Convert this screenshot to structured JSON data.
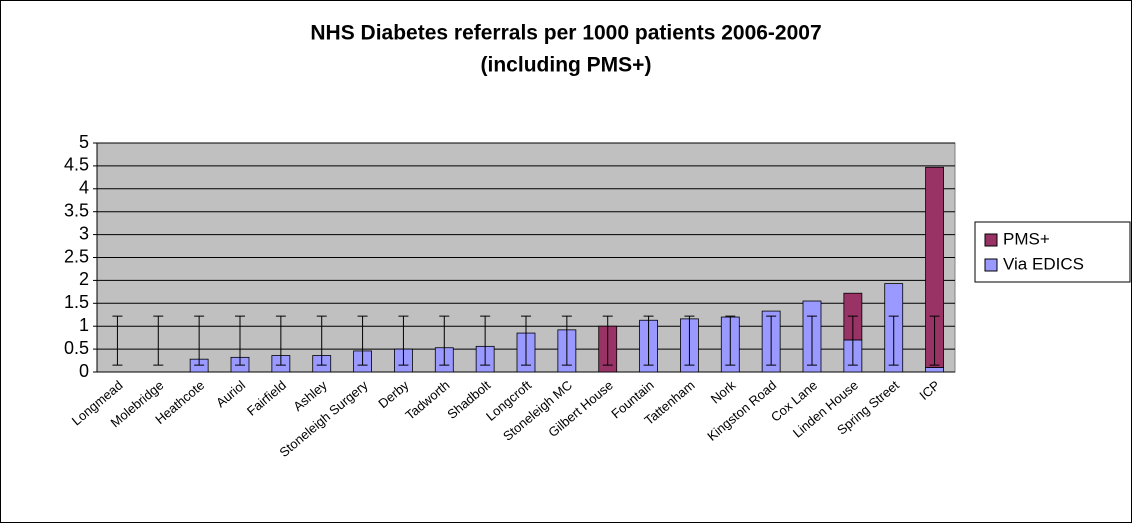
{
  "chart_data": {
    "type": "stacked_bar",
    "title": [
      "NHS Diabetes referrals per 1000 patients 2006-2007",
      "(including PMS+)"
    ],
    "categories": [
      "Longmead",
      "Molebridge",
      "Heathcote",
      "Auriol",
      "Fairfield",
      "Ashley",
      "Stoneleigh Surgery",
      "Derby",
      "Tadworth",
      "Shadbolt",
      "Longcroft",
      "Stoneleigh MC",
      "Gilbert House",
      "Fountain",
      "Tattenham",
      "Nork",
      "Kingston Road",
      "Cox Lane",
      "Linden House",
      "Spring Street",
      "ICP"
    ],
    "series": [
      {
        "name": "Via EDICS",
        "color": "#9999ff",
        "values": [
          0,
          0,
          0.28,
          0.32,
          0.36,
          0.36,
          0.46,
          0.5,
          0.53,
          0.56,
          0.85,
          0.92,
          0,
          1.13,
          1.16,
          1.2,
          1.33,
          1.55,
          0.7,
          1.93,
          0.1
        ]
      },
      {
        "name": "PMS+",
        "color": "#993366",
        "values": [
          0,
          0,
          0,
          0,
          0,
          0,
          0,
          0,
          0,
          0,
          0,
          0,
          1.0,
          0,
          0,
          0,
          0,
          0,
          1.02,
          0,
          4.37
        ]
      }
    ],
    "range_low": 0.15,
    "range_high": 1.22,
    "ylim": [
      0,
      5
    ],
    "yticks": [
      0,
      0.5,
      1,
      1.5,
      2,
      2.5,
      3,
      3.5,
      4,
      4.5,
      5
    ],
    "grid": true,
    "legend": "right",
    "plot_background": "#c0c0c0"
  }
}
